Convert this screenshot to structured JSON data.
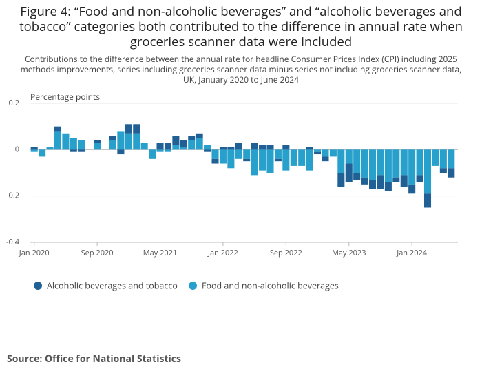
{
  "chart_data": {
    "type": "bar",
    "stacked": true,
    "title": "Figure 4: “Food and non-alcoholic beverages” and “alcoholic beverages and tobacco” categories both contributed to the difference in annual rate when groceries scanner data were included",
    "subtitle": "Contributions to the difference between the annual rate for headline Consumer Prices Index (CPI) including 2025 methods improvements, series including groceries scanner data minus series not including groceries scanner data, UK, January 2020 to June 2024",
    "y_label": "Percentage points",
    "source": "Source: Office for National Statistics",
    "categories": [
      "Jan 2020",
      null,
      null,
      null,
      null,
      null,
      null,
      null,
      "Sep 2020",
      null,
      null,
      null,
      null,
      null,
      null,
      null,
      "May 2021",
      null,
      null,
      null,
      null,
      null,
      null,
      null,
      "Jan 2022",
      null,
      null,
      null,
      null,
      null,
      null,
      null,
      "Sep 2022",
      null,
      null,
      null,
      null,
      null,
      null,
      null,
      "May 2023",
      null,
      null,
      null,
      null,
      null,
      null,
      null,
      "Jan 2024",
      null,
      null,
      null,
      null,
      null
    ],
    "series": [
      {
        "name": "Alcoholic beverages and tobacco",
        "color": "#206095",
        "values": [
          0.01,
          0,
          0,
          0.02,
          0,
          -0.01,
          -0.01,
          0,
          0.01,
          0,
          0.02,
          -0.02,
          0.04,
          0.04,
          0,
          0,
          0.03,
          0.03,
          0.04,
          0.03,
          0.02,
          0.02,
          -0.01,
          -0.02,
          0.01,
          0.01,
          0.03,
          -0.01,
          0.03,
          0.02,
          0.02,
          -0.01,
          0.02,
          0,
          0,
          0.01,
          -0.01,
          -0.02,
          0,
          -0.06,
          -0.08,
          -0.03,
          -0.03,
          -0.04,
          -0.06,
          -0.04,
          -0.02,
          -0.05,
          -0.04,
          -0.03,
          -0.06,
          0,
          -0.02,
          -0.04
        ]
      },
      {
        "name": "Food and non-alcoholic beverages",
        "color": "#27a0cc",
        "values": [
          -0.01,
          -0.03,
          0.01,
          0.08,
          0.07,
          0.05,
          0.04,
          0,
          0.03,
          0,
          0.04,
          0.08,
          0.07,
          0.07,
          0.03,
          -0.04,
          -0.01,
          -0.01,
          0.02,
          0.01,
          0.04,
          0.05,
          0.02,
          -0.04,
          -0.06,
          -0.08,
          -0.04,
          -0.04,
          -0.11,
          -0.09,
          -0.1,
          -0.04,
          -0.09,
          -0.07,
          -0.07,
          -0.09,
          -0.01,
          -0.03,
          -0.03,
          -0.1,
          -0.06,
          -0.1,
          -0.12,
          -0.13,
          -0.11,
          -0.14,
          -0.12,
          -0.11,
          -0.15,
          -0.11,
          -0.19,
          -0.07,
          -0.08,
          -0.08
        ]
      }
    ],
    "ylim": [
      -0.4,
      0.2
    ],
    "yticks": [
      -0.4,
      -0.2,
      0,
      0.2
    ],
    "grid": true
  }
}
